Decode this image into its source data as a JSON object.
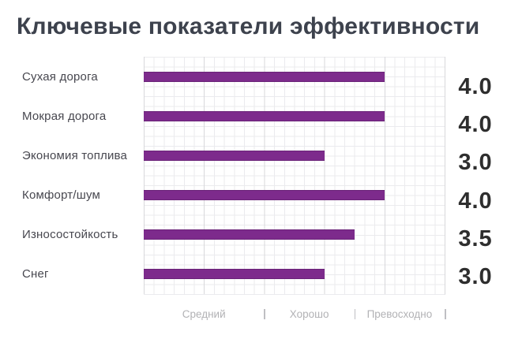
{
  "chart_data": {
    "type": "bar",
    "orientation": "horizontal",
    "title": "Ключевые показатели эффективности",
    "categories": [
      "Сухая дорога",
      "Мокрая дорога",
      "Экономия топлива",
      "Комфорт/шум",
      "Износостойкость",
      "Снег"
    ],
    "values": [
      4.0,
      4.0,
      3.0,
      4.0,
      3.5,
      3.0
    ],
    "value_labels": [
      "4.0",
      "4.0",
      "3.0",
      "4.0",
      "3.5",
      "3.0"
    ],
    "xlim": [
      0,
      5
    ],
    "x_major_step": 1,
    "x_minor_per_major": 6,
    "grid": true,
    "legend": false,
    "rating_zones": [
      {
        "label": "Средний",
        "from": 0,
        "to": 2
      },
      {
        "label": "Хорошо",
        "from": 2,
        "to": 3.5
      },
      {
        "label": "Превосходно",
        "from": 3.5,
        "to": 5
      }
    ],
    "colors": {
      "bar": "#7d2b8c",
      "bar_edge": "#6a2378",
      "title_text": "#3d424d",
      "category_text": "#47474f",
      "value_text": "#2e2e2e",
      "axis_text": "#b2b2b5",
      "grid_minor": "#ebebee",
      "grid_major": "#d8d8db",
      "background": "#ffffff"
    }
  }
}
